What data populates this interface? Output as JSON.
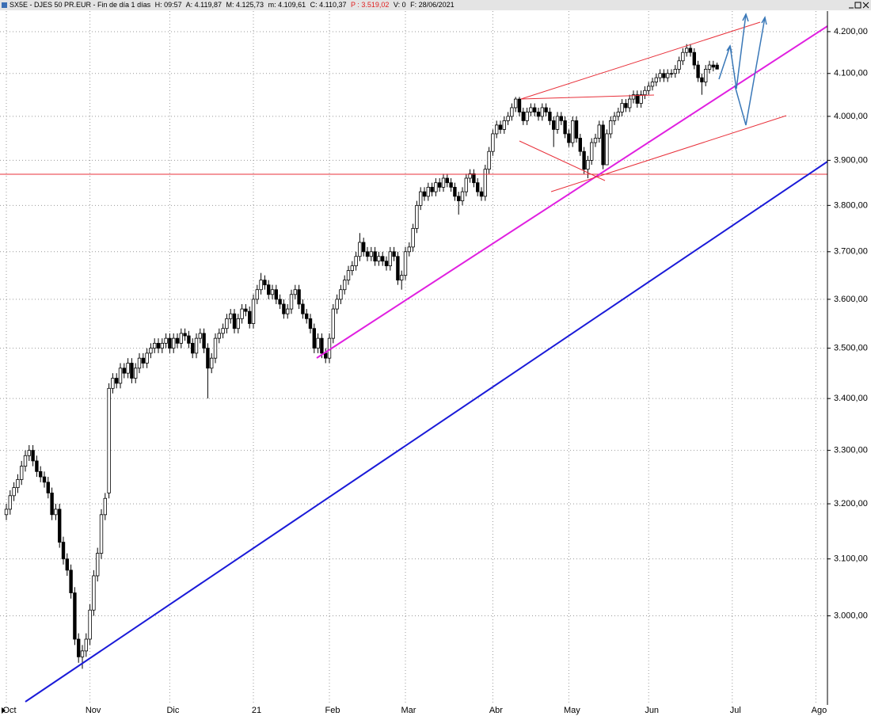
{
  "header": {
    "title": "SX5E - DJES 50 PR.EUR - Fin de día 1 días",
    "fields": [
      "H: 09:57",
      "A: 4.119,87",
      "M: 4.125,73",
      "m: 4.109,61",
      "C: 4.110,37",
      "P : 3.519,02",
      "V: 0",
      "F: 28/06/2021"
    ]
  },
  "chart_data": {
    "type": "candlestick",
    "log_scale": true,
    "grid": true,
    "up_color": "#ffffff",
    "down_color": "#000000",
    "edge_color": "#000000",
    "categories": [
      "Oct",
      null,
      null,
      null,
      null,
      null,
      null,
      null,
      null,
      null,
      null,
      null,
      null,
      null,
      null,
      null,
      null,
      null,
      null,
      null,
      null,
      null,
      "Nov",
      null,
      null,
      null,
      null,
      null,
      null,
      null,
      null,
      null,
      null,
      null,
      null,
      null,
      null,
      null,
      null,
      null,
      null,
      null,
      null,
      "Dic",
      null,
      null,
      null,
      null,
      null,
      null,
      null,
      null,
      null,
      null,
      null,
      null,
      null,
      null,
      null,
      null,
      null,
      null,
      null,
      null,
      null,
      "21",
      null,
      null,
      null,
      null,
      null,
      null,
      null,
      null,
      null,
      null,
      null,
      null,
      null,
      null,
      null,
      null,
      null,
      null,
      null,
      "Feb",
      null,
      null,
      null,
      null,
      null,
      null,
      null,
      null,
      null,
      null,
      null,
      null,
      null,
      null,
      null,
      null,
      null,
      null,
      null,
      "Mar",
      null,
      null,
      null,
      null,
      null,
      null,
      null,
      null,
      null,
      null,
      null,
      null,
      null,
      null,
      null,
      null,
      null,
      null,
      null,
      null,
      null,
      null,
      "Abr",
      null,
      null,
      null,
      null,
      null,
      null,
      null,
      null,
      null,
      null,
      null,
      null,
      null,
      null,
      null,
      null,
      null,
      null,
      null,
      "May",
      null,
      null,
      null,
      null,
      null,
      null,
      null,
      null,
      null,
      null,
      null,
      null,
      null,
      null,
      null,
      null,
      null,
      null,
      null,
      null,
      "Jun",
      null,
      null,
      null,
      null,
      null,
      null,
      null,
      null,
      null,
      null,
      null,
      null,
      null,
      null,
      null,
      null,
      null,
      null,
      null,
      null,
      null,
      "Jul",
      null,
      null,
      null,
      null,
      null,
      null,
      null,
      null,
      null,
      null,
      null,
      null,
      null,
      null,
      null,
      null,
      null,
      null,
      null,
      null,
      null,
      "Ago",
      null,
      null,
      null
    ],
    "open": [
      3180,
      3190,
      3215,
      3230,
      3245,
      3270,
      3290,
      3300,
      3280,
      3260,
      3250,
      3240,
      3220,
      3180,
      3190,
      3130,
      3100,
      3080,
      3040,
      2960,
      2930,
      2940,
      2960,
      3010,
      3070,
      3110,
      3180,
      3220,
      3420,
      3440,
      3430,
      3460,
      3450,
      3470,
      3440,
      3460,
      3480,
      3470,
      3490,
      3500,
      3510,
      3500,
      3510,
      3520,
      3500,
      3520,
      3510,
      3530,
      3525,
      3510,
      3490,
      3520,
      3530,
      3500,
      3460,
      3480,
      3520,
      3530,
      3540,
      3560,
      3570,
      3540,
      3560,
      3580,
      3575,
      3550,
      3600,
      3620,
      3640,
      3630,
      3610,
      3620,
      3600,
      3590,
      3570,
      3580,
      3610,
      3620,
      3590,
      3570,
      3560,
      3540,
      3500,
      3520,
      3490,
      3480,
      3520,
      3580,
      3600,
      3620,
      3640,
      3660,
      3670,
      3690,
      3720,
      3700,
      3690,
      3700,
      3680,
      3690,
      3680,
      3670,
      3700,
      3690,
      3640,
      3650,
      3700,
      3710,
      3750,
      3800,
      3830,
      3820,
      3840,
      3830,
      3850,
      3840,
      3860,
      3850,
      3840,
      3820,
      3810,
      3830,
      3860,
      3870,
      3850,
      3830,
      3820,
      3880,
      3920,
      3960,
      3980,
      3970,
      3990,
      4000,
      4020,
      4040,
      4010,
      3990,
      4010,
      4020,
      4010,
      4000,
      4020,
      4010,
      3990,
      3970,
      4000,
      3990,
      3960,
      3940,
      3990,
      3950,
      3920,
      3880,
      3900,
      3940,
      3950,
      3980,
      3890,
      3960,
      3990,
      4000,
      4010,
      4030,
      4020,
      4040,
      4050,
      4030,
      4050,
      4060,
      4070,
      4080,
      4090,
      4100,
      4090,
      4100,
      4100,
      4110,
      4130,
      4150,
      4160,
      4150,
      4120,
      4090,
      4080,
      4110,
      4120,
      4119.87,
      null,
      null,
      null,
      null,
      null,
      null,
      null,
      null,
      null,
      null,
      null,
      null,
      null,
      null,
      null,
      null,
      null,
      null,
      null,
      null,
      null,
      null,
      null,
      null,
      null,
      null,
      null,
      null,
      null
    ],
    "high": [
      3200,
      3225,
      3240,
      3255,
      3280,
      3300,
      3310,
      3310,
      3290,
      3270,
      3260,
      3250,
      3230,
      3200,
      3200,
      3140,
      3110,
      3090,
      3050,
      2970,
      2950,
      2970,
      3020,
      3080,
      3120,
      3190,
      3220,
      3430,
      3450,
      3450,
      3470,
      3470,
      3480,
      3480,
      3470,
      3490,
      3490,
      3500,
      3510,
      3520,
      3520,
      3520,
      3530,
      3530,
      3530,
      3530,
      3540,
      3540,
      3535,
      3520,
      3530,
      3540,
      3540,
      3510,
      3490,
      3530,
      3540,
      3550,
      3570,
      3580,
      3580,
      3570,
      3590,
      3590,
      3585,
      3610,
      3630,
      3655,
      3650,
      3640,
      3630,
      3630,
      3610,
      3600,
      3590,
      3620,
      3630,
      3630,
      3600,
      3580,
      3570,
      3550,
      3530,
      3530,
      3500,
      3530,
      3590,
      3610,
      3630,
      3650,
      3670,
      3680,
      3700,
      3740,
      3730,
      3710,
      3710,
      3710,
      3700,
      3700,
      3690,
      3710,
      3710,
      3700,
      3660,
      3710,
      3720,
      3760,
      3810,
      3840,
      3840,
      3850,
      3850,
      3860,
      3860,
      3870,
      3870,
      3860,
      3850,
      3830,
      3840,
      3870,
      3880,
      3880,
      3860,
      3840,
      3890,
      3930,
      3970,
      3990,
      3990,
      4000,
      4010,
      4030,
      4045,
      4045,
      4020,
      4020,
      4030,
      4030,
      4020,
      4030,
      4030,
      4020,
      4000,
      4010,
      4010,
      4000,
      3970,
      4000,
      4000,
      3960,
      3930,
      3910,
      3950,
      3960,
      3990,
      3990,
      3970,
      4000,
      4010,
      4020,
      4040,
      4040,
      4050,
      4060,
      4060,
      4060,
      4070,
      4080,
      4090,
      4100,
      4110,
      4110,
      4110,
      4110,
      4120,
      4140,
      4160,
      4170,
      4170,
      4160,
      4130,
      4100,
      4120,
      4130,
      4130,
      4125.73,
      null,
      null,
      null,
      null,
      null,
      null,
      null,
      null,
      null,
      null,
      null,
      null,
      null,
      null,
      null,
      null,
      null,
      null,
      null,
      null,
      null,
      null,
      null,
      null,
      null,
      null,
      null,
      null,
      null
    ],
    "low": [
      3170,
      3180,
      3205,
      3220,
      3235,
      3260,
      3280,
      3270,
      3250,
      3240,
      3230,
      3210,
      3170,
      3170,
      3120,
      3090,
      3070,
      3030,
      2950,
      2920,
      2910,
      2930,
      2950,
      3000,
      3060,
      3100,
      3170,
      3210,
      3410,
      3420,
      3420,
      3440,
      3440,
      3430,
      3430,
      3450,
      3460,
      3460,
      3480,
      3490,
      3490,
      3490,
      3500,
      3490,
      3490,
      3500,
      3500,
      3515,
      3500,
      3480,
      3480,
      3510,
      3490,
      3400,
      3450,
      3470,
      3510,
      3520,
      3530,
      3550,
      3530,
      3530,
      3550,
      3565,
      3540,
      3540,
      3590,
      3610,
      3620,
      3600,
      3600,
      3590,
      3580,
      3560,
      3560,
      3570,
      3600,
      3580,
      3560,
      3550,
      3530,
      3490,
      3490,
      3480,
      3470,
      3470,
      3510,
      3570,
      3590,
      3610,
      3630,
      3650,
      3660,
      3680,
      3690,
      3680,
      3680,
      3670,
      3670,
      3670,
      3660,
      3660,
      3680,
      3630,
      3620,
      3640,
      3690,
      3700,
      3740,
      3790,
      3810,
      3810,
      3820,
      3820,
      3830,
      3830,
      3840,
      3830,
      3810,
      3780,
      3800,
      3820,
      3850,
      3840,
      3820,
      3810,
      3810,
      3870,
      3910,
      3950,
      3960,
      3960,
      3980,
      3990,
      4010,
      4000,
      3980,
      3980,
      4000,
      4000,
      3990,
      3990,
      4000,
      3980,
      3930,
      3960,
      3980,
      3950,
      3930,
      3930,
      3940,
      3910,
      3870,
      3860,
      3890,
      3930,
      3940,
      3880,
      3890,
      3950,
      3980,
      3990,
      4000,
      4010,
      4010,
      4030,
      4020,
      4020,
      4040,
      4050,
      4060,
      4070,
      4080,
      4080,
      4080,
      4090,
      4090,
      4100,
      4120,
      4140,
      4140,
      4110,
      4080,
      4050,
      4070,
      4100,
      4105,
      4109.61,
      null,
      null,
      null,
      null,
      null,
      null,
      null,
      null,
      null,
      null,
      null,
      null,
      null,
      null,
      null,
      null,
      null,
      null,
      null,
      null,
      null,
      null,
      null,
      null,
      null,
      null,
      null,
      null,
      null
    ],
    "close": [
      3190,
      3215,
      3230,
      3245,
      3270,
      3290,
      3300,
      3280,
      3260,
      3250,
      3240,
      3220,
      3180,
      3190,
      3130,
      3100,
      3080,
      3040,
      2960,
      2930,
      2940,
      2960,
      3010,
      3070,
      3110,
      3180,
      3210,
      3420,
      3440,
      3430,
      3460,
      3450,
      3470,
      3440,
      3460,
      3480,
      3470,
      3490,
      3500,
      3510,
      3500,
      3510,
      3520,
      3500,
      3520,
      3510,
      3530,
      3525,
      3510,
      3490,
      3520,
      3530,
      3500,
      3460,
      3480,
      3520,
      3530,
      3540,
      3560,
      3570,
      3540,
      3560,
      3580,
      3575,
      3550,
      3600,
      3620,
      3640,
      3630,
      3610,
      3620,
      3600,
      3590,
      3570,
      3580,
      3610,
      3620,
      3590,
      3570,
      3560,
      3540,
      3500,
      3520,
      3490,
      3480,
      3520,
      3580,
      3600,
      3620,
      3640,
      3660,
      3670,
      3690,
      3720,
      3700,
      3690,
      3700,
      3680,
      3690,
      3680,
      3670,
      3700,
      3690,
      3640,
      3650,
      3700,
      3710,
      3750,
      3800,
      3830,
      3820,
      3840,
      3830,
      3850,
      3840,
      3860,
      3850,
      3840,
      3820,
      3810,
      3830,
      3860,
      3870,
      3850,
      3830,
      3820,
      3880,
      3920,
      3960,
      3980,
      3970,
      3990,
      4000,
      4020,
      4040,
      4010,
      3990,
      4010,
      4020,
      4010,
      4000,
      4020,
      4010,
      3990,
      3970,
      4000,
      3990,
      3960,
      3940,
      3990,
      3950,
      3920,
      3880,
      3900,
      3940,
      3950,
      3980,
      3890,
      3960,
      3990,
      4000,
      4010,
      4030,
      4020,
      4040,
      4050,
      4030,
      4050,
      4060,
      4070,
      4080,
      4090,
      4100,
      4090,
      4100,
      4100,
      4110,
      4130,
      4150,
      4160,
      4150,
      4120,
      4090,
      4080,
      4110,
      4120,
      4115,
      4110.37,
      null,
      null,
      null,
      null,
      null,
      null,
      null,
      null,
      null,
      null,
      null,
      null,
      null,
      null,
      null,
      null,
      null,
      null,
      null,
      null,
      null,
      null,
      null,
      null,
      null,
      null,
      null,
      null,
      null
    ],
    "ylim": [
      2850,
      4250
    ],
    "yticks": [
      {
        "value": 3000,
        "label": "3.000,00"
      },
      {
        "value": 3100,
        "label": "3.100,00"
      },
      {
        "value": 3200,
        "label": "3.200,00"
      },
      {
        "value": 3300,
        "label": "3.300,00"
      },
      {
        "value": 3400,
        "label": "3.400,00"
      },
      {
        "value": 3500,
        "label": "3.500,00"
      },
      {
        "value": 3600,
        "label": "3.600,00"
      },
      {
        "value": 3700,
        "label": "3.700,00"
      },
      {
        "value": 3800,
        "label": "3.800,00"
      },
      {
        "value": 3900,
        "label": "3.900,00"
      },
      {
        "value": 4000,
        "label": "4.000,00"
      },
      {
        "value": 4100,
        "label": "4.100,00"
      },
      {
        "value": 4200,
        "label": "4.200,00"
      }
    ]
  }
}
